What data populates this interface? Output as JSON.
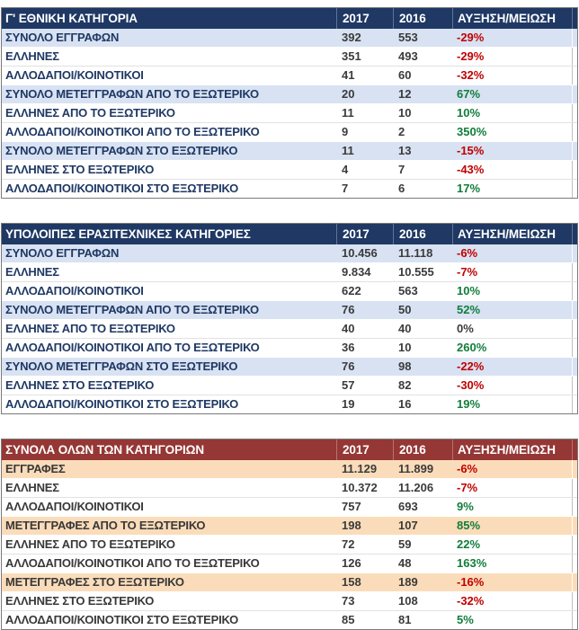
{
  "colors": {
    "blue_header_bg": "#1F3864",
    "blue_header_text": "#FFFFFF",
    "blue_band_bg": "#D8E2F2",
    "blue_label_text": "#1F3864",
    "red_header_bg": "#953735",
    "red_header_text": "#FFFFFF",
    "red_band_bg": "#FBDCBA",
    "red_label_text": "#383838",
    "number_text": "#3B3B3B",
    "increase_text": "#117D3B",
    "decrease_text": "#C00000"
  },
  "chart_data": [
    {
      "type": "table",
      "title": "Γ' ΕΘΝΙΚΗ ΚΑΤΗΓΟΡΙΑ",
      "theme": "blue",
      "columns": [
        "",
        "2017",
        "2016",
        "ΑΥΞΗΣΗ/ΜΕΙΩΣΗ"
      ],
      "rows": [
        {
          "label": "ΣΥΝΟΛΟ ΕΓΓΡΑΦΩΝ",
          "y2017": "392",
          "y2016": "553",
          "change": "-29%"
        },
        {
          "label": "ΕΛΛΗΝΕΣ",
          "y2017": "351",
          "y2016": "493",
          "change": "-29%"
        },
        {
          "label": "ΑΛΛΟΔΑΠΟΙ/ΚΟΙΝΟΤΙΚΟΙ",
          "y2017": "41",
          "y2016": "60",
          "change": "-32%"
        },
        {
          "label": "ΣΥΝΟΛΟ ΜΕΤΕΓΓΡΑΦΩΝ ΑΠΟ ΤΟ ΕΞΩΤΕΡΙΚΟ",
          "y2017": "20",
          "y2016": "12",
          "change": "67%"
        },
        {
          "label": "ΕΛΛΗΝΕΣ ΑΠΟ ΤΟ ΕΞΩΤΕΡΙΚΟ",
          "y2017": "11",
          "y2016": "10",
          "change": "10%"
        },
        {
          "label": "ΑΛΛΟΔΑΠΟΙ/ΚΟΙΝΟΤΙΚΟΙ ΑΠΟ ΤΟ ΕΞΩΤΕΡΙΚΟ",
          "y2017": "9",
          "y2016": "2",
          "change": "350%"
        },
        {
          "label": "ΣΥΝΟΛΟ ΜΕΤΕΓΓΡΑΦΩΝ ΣΤΟ ΕΞΩΤΕΡΙΚΟ",
          "y2017": "11",
          "y2016": "13",
          "change": "-15%"
        },
        {
          "label": "ΕΛΛΗΝΕΣ ΣΤΟ ΕΞΩΤΕΡΙΚΟ",
          "y2017": "4",
          "y2016": "7",
          "change": "-43%"
        },
        {
          "label": "ΑΛΛΟΔΑΠΟΙ/ΚΟΙΝΟΤΙΚΟΙ ΣΤΟ ΕΞΩΤΕΡΙΚΟ",
          "y2017": "7",
          "y2016": "6",
          "change": "17%"
        }
      ]
    },
    {
      "type": "table",
      "title": "ΥΠΟΛΟΙΠΕΣ ΕΡΑΣΙΤΕΧΝΙΚΕΣ ΚΑΤΗΓΟΡΙΕΣ",
      "theme": "blue",
      "columns": [
        "",
        "2017",
        "2016",
        "ΑΥΞΗΣΗ/ΜΕΙΩΣΗ"
      ],
      "rows": [
        {
          "label": "ΣΥΝΟΛΟ ΕΓΓΡΑΦΩΝ",
          "y2017": "10.456",
          "y2016": "11.118",
          "change": "-6%"
        },
        {
          "label": "ΕΛΛΗΝΕΣ",
          "y2017": "9.834",
          "y2016": "10.555",
          "change": "-7%"
        },
        {
          "label": "ΑΛΛΟΔΑΠΟΙ/ΚΟΙΝΟΤΙΚΟΙ",
          "y2017": "622",
          "y2016": "563",
          "change": "10%"
        },
        {
          "label": "ΣΥΝΟΛΟ ΜΕΤΕΓΓΡΑΦΩΝ ΑΠΟ ΤΟ ΕΞΩΤΕΡΙΚΟ",
          "y2017": "76",
          "y2016": "50",
          "change": "52%"
        },
        {
          "label": "ΕΛΛΗΝΕΣ ΑΠΟ ΤΟ ΕΞΩΤΕΡΙΚΟ",
          "y2017": "40",
          "y2016": "40",
          "change": "0%"
        },
        {
          "label": "ΑΛΛΟΔΑΠΟΙ/ΚΟΙΝΟΤΙΚΟΙ ΑΠΟ ΤΟ ΕΞΩΤΕΡΙΚΟ",
          "y2017": "36",
          "y2016": "10",
          "change": "260%"
        },
        {
          "label": "ΣΥΝΟΛΟ ΜΕΤΕΓΓΡΑΦΩΝ ΣΤΟ ΕΞΩΤΕΡΙΚΟ",
          "y2017": "76",
          "y2016": "98",
          "change": "-22%"
        },
        {
          "label": "ΕΛΛΗΝΕΣ ΣΤΟ ΕΞΩΤΕΡΙΚΟ",
          "y2017": "57",
          "y2016": "82",
          "change": "-30%"
        },
        {
          "label": "ΑΛΛΟΔΑΠΟΙ/ΚΟΙΝΟΤΙΚΟΙ ΣΤΟ ΕΞΩΤΕΡΙΚΟ",
          "y2017": "19",
          "y2016": "16",
          "change": "19%"
        }
      ]
    },
    {
      "type": "table",
      "title": "ΣΥΝΟΛΑ ΟΛΩΝ ΤΩΝ ΚΑΤΗΓΟΡΙΩΝ",
      "theme": "red",
      "columns": [
        "",
        "2017",
        "2016",
        "ΑΥΞΗΣΗ/ΜΕΙΩΣΗ"
      ],
      "rows": [
        {
          "label": "ΕΓΓΡΑΦΕΣ",
          "y2017": "11.129",
          "y2016": "11.899",
          "change": "-6%"
        },
        {
          "label": "ΕΛΛΗΝΕΣ",
          "y2017": "10.372",
          "y2016": "11.206",
          "change": "-7%"
        },
        {
          "label": "ΑΛΛΟΔΑΠΟΙ/ΚΟΙΝΟΤΙΚΟΙ",
          "y2017": "757",
          "y2016": "693",
          "change": "9%"
        },
        {
          "label": "ΜΕΤΕΓΓΡΑΦΕΣ ΑΠΟ ΤΟ ΕΞΩΤΕΡΙΚΟ",
          "y2017": "198",
          "y2016": "107",
          "change": "85%"
        },
        {
          "label": "ΕΛΛΗΝΕΣ ΑΠΟ ΤΟ ΕΞΩΤΕΡΙΚΟ",
          "y2017": "72",
          "y2016": "59",
          "change": "22%"
        },
        {
          "label": "ΑΛΛΟΔΑΠΟΙ/ΚΟΙΝΟΤΙΚΟΙ ΑΠΟ ΤΟ ΕΞΩΤΕΡΙΚΟ",
          "y2017": "126",
          "y2016": "48",
          "change": "163%"
        },
        {
          "label": "ΜΕΤΕΓΓΡΑΦΕΣ ΣΤΟ ΕΞΩΤΕΡΙΚΟ",
          "y2017": "158",
          "y2016": "189",
          "change": "-16%"
        },
        {
          "label": "ΕΛΛΗΝΕΣ ΣΤΟ ΕΞΩΤΕΡΙΚΟ",
          "y2017": "73",
          "y2016": "108",
          "change": "-32%"
        },
        {
          "label": "ΑΛΛΟΔΑΠΟΙ/ΚΟΙΝΟΤΙΚΟΙ ΣΤΟ ΕΞΩΤΕΡΙΚΟ",
          "y2017": "85",
          "y2016": "81",
          "change": "5%"
        }
      ]
    }
  ]
}
